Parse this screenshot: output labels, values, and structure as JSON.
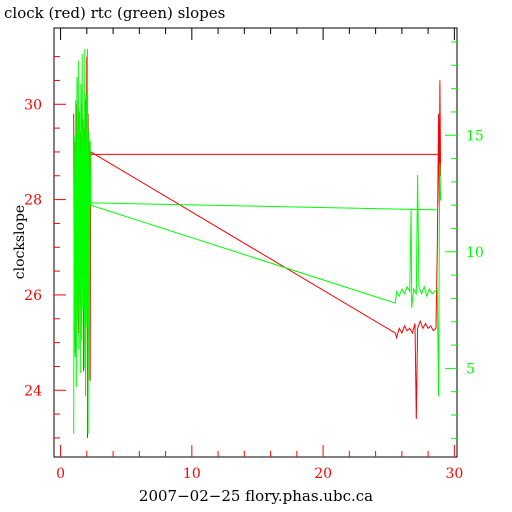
{
  "chart_data": {
    "type": "line",
    "title": "clock (red) rtc (green) slopes",
    "xlabel": "2007−02−25  flory.phas.ubc.ca",
    "ylabel": "clockslope",
    "xlim": [
      -0.5,
      30.2
    ],
    "ylim_left": [
      22.6,
      31.6
    ],
    "ylim_right": [
      1.2,
      19.6
    ],
    "x_ticks": [
      0,
      10,
      20,
      30
    ],
    "y_ticks_left": [
      24,
      26,
      28,
      30
    ],
    "y_ticks_right": [
      5,
      10,
      15
    ],
    "grid": false,
    "series": [
      {
        "name": "clock",
        "color": "#ff0000",
        "axis": "left",
        "points": [
          [
            1.0,
            29.8
          ],
          [
            1.05,
            25.5
          ],
          [
            1.1,
            29.2
          ],
          [
            1.15,
            24.8
          ],
          [
            1.2,
            30.0
          ],
          [
            1.25,
            26.0
          ],
          [
            1.3,
            29.6
          ],
          [
            1.35,
            25.2
          ],
          [
            1.4,
            29.9
          ],
          [
            1.45,
            26.8
          ],
          [
            1.5,
            29.4
          ],
          [
            1.55,
            25.8
          ],
          [
            1.6,
            30.0
          ],
          [
            1.65,
            26.4
          ],
          [
            1.7,
            29.7
          ],
          [
            1.75,
            24.4
          ],
          [
            1.8,
            29.5
          ],
          [
            1.85,
            26.2
          ],
          [
            1.9,
            30.1
          ],
          [
            1.95,
            27.0
          ],
          [
            2.0,
            31.0
          ],
          [
            2.05,
            23.0
          ],
          [
            2.1,
            29.8
          ],
          [
            2.15,
            26.6
          ],
          [
            2.2,
            29.2
          ],
          [
            2.25,
            24.2
          ],
          [
            2.3,
            29.0
          ],
          [
            25.5,
            25.2
          ],
          [
            25.6,
            25.1
          ],
          [
            25.8,
            25.3
          ],
          [
            26.0,
            25.2
          ],
          [
            26.2,
            25.35
          ],
          [
            26.4,
            25.25
          ],
          [
            26.6,
            25.3
          ],
          [
            26.8,
            25.2
          ],
          [
            27.0,
            25.4
          ],
          [
            27.1,
            23.4
          ],
          [
            27.2,
            25.3
          ],
          [
            27.4,
            25.45
          ],
          [
            27.6,
            25.3
          ],
          [
            27.8,
            25.4
          ],
          [
            28.0,
            25.3
          ],
          [
            28.2,
            25.35
          ],
          [
            28.4,
            25.25
          ],
          [
            28.6,
            25.3
          ],
          [
            28.7,
            27.0
          ],
          [
            28.8,
            29.8
          ],
          [
            28.85,
            27.9
          ],
          [
            28.9,
            30.5
          ],
          [
            28.95,
            28.5
          ]
        ],
        "plateau": [
          [
            2.3,
            28.95
          ],
          [
            28.8,
            28.95
          ]
        ]
      },
      {
        "name": "rtc",
        "color": "#00ff00",
        "axis": "right",
        "points": [
          [
            1.0,
            2.2
          ],
          [
            1.05,
            15.0
          ],
          [
            1.1,
            5.5
          ],
          [
            1.15,
            16.5
          ],
          [
            1.2,
            4.2
          ],
          [
            1.25,
            17.5
          ],
          [
            1.3,
            7.0
          ],
          [
            1.35,
            18.2
          ],
          [
            1.4,
            5.8
          ],
          [
            1.45,
            16.0
          ],
          [
            1.5,
            4.8
          ],
          [
            1.55,
            17.2
          ],
          [
            1.6,
            6.2
          ],
          [
            1.65,
            18.5
          ],
          [
            1.7,
            7.5
          ],
          [
            1.75,
            15.6
          ],
          [
            1.8,
            5.0
          ],
          [
            1.85,
            18.7
          ],
          [
            1.9,
            3.8
          ],
          [
            1.95,
            16.8
          ],
          [
            2.0,
            6.8
          ],
          [
            2.05,
            18.7
          ],
          [
            2.1,
            2.2
          ],
          [
            2.15,
            15.2
          ],
          [
            2.2,
            4.5
          ],
          [
            2.25,
            14.8
          ],
          [
            2.3,
            12.0
          ],
          [
            25.5,
            7.8
          ],
          [
            25.6,
            8.3
          ],
          [
            25.8,
            8.1
          ],
          [
            26.0,
            8.4
          ],
          [
            26.2,
            8.2
          ],
          [
            26.4,
            8.5
          ],
          [
            26.6,
            8.3
          ],
          [
            26.7,
            11.8
          ],
          [
            26.75,
            7.6
          ],
          [
            26.9,
            8.4
          ],
          [
            27.1,
            8.2
          ],
          [
            27.2,
            13.3
          ],
          [
            27.3,
            8.5
          ],
          [
            27.5,
            8.2
          ],
          [
            27.7,
            8.5
          ],
          [
            27.9,
            8.1
          ],
          [
            28.1,
            8.4
          ],
          [
            28.3,
            8.2
          ],
          [
            28.5,
            8.3
          ],
          [
            28.7,
            8.4
          ],
          [
            28.8,
            3.8
          ],
          [
            28.85,
            11.0
          ],
          [
            28.9,
            13.8
          ],
          [
            28.95,
            12.2
          ]
        ],
        "plateau": [
          [
            2.3,
            12.1
          ],
          [
            28.8,
            11.8
          ]
        ]
      }
    ]
  }
}
